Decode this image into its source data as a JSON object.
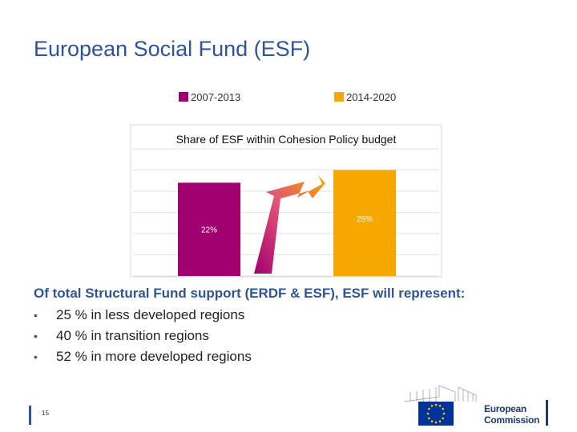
{
  "title": "European Social Fund (ESF)",
  "legend": [
    {
      "label": "2007-2013",
      "color": "#a0006e"
    },
    {
      "label": "2014-2020",
      "color": "#f5a800"
    }
  ],
  "chart_data": {
    "type": "bar",
    "title": "Share of ESF within Cohesion Policy budget",
    "categories": [
      "2007-2013",
      "2014-2020"
    ],
    "values": [
      22,
      25
    ],
    "data_labels": [
      "22%",
      "25%"
    ],
    "colors": [
      "#a0006e",
      "#f5a800"
    ],
    "ylim": [
      0,
      30
    ],
    "grid": true,
    "legend": "top",
    "annotation": "arrow from 2007-2013 bar rising to 2014-2020 bar"
  },
  "text": {
    "intro": "Of total Structural Fund support (ERDF & ESF), ESF will represent:",
    "bullets": [
      "25 % in less developed regions",
      "40 % in transition regions",
      "52 % in more developed regions"
    ],
    "bullet_char": "•"
  },
  "footer": {
    "page_number": "15",
    "logo_line1": "European",
    "logo_line2": "Commission",
    "logo_icon": "eu-flag-icon"
  }
}
